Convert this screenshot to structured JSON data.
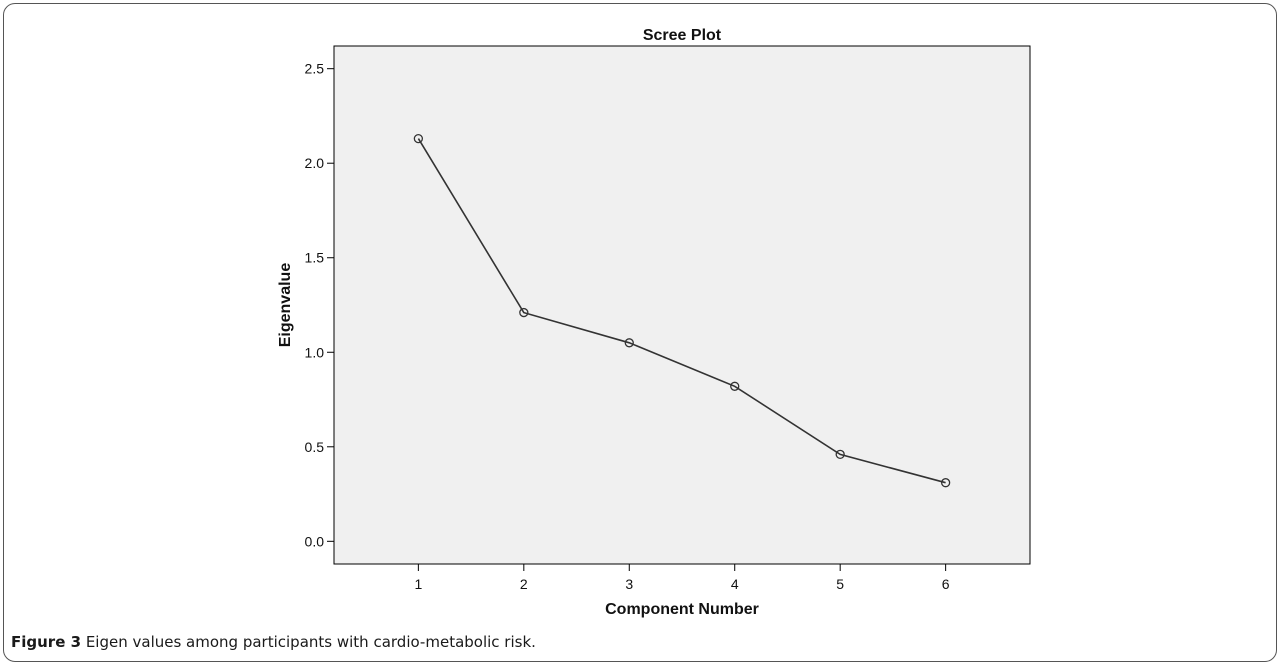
{
  "chart_data": {
    "type": "line",
    "title": "Scree Plot",
    "xlabel": "Component Number",
    "ylabel": "Eigenvalue",
    "x": [
      1,
      2,
      3,
      4,
      5,
      6
    ],
    "values": [
      2.13,
      1.21,
      1.05,
      0.82,
      0.46,
      0.31
    ],
    "xlim": [
      0.2,
      6.8
    ],
    "ylim": [
      -0.12,
      2.62
    ],
    "yticks": [
      "0.0",
      "0.5",
      "1.0",
      "1.5",
      "2.0",
      "2.5"
    ],
    "xticks": [
      "1",
      "2",
      "3",
      "4",
      "5",
      "6"
    ],
    "grid": false,
    "plot_background": "#f0f0f0",
    "line_color": "#333333",
    "marker": "open-circle"
  },
  "caption": {
    "label": "Figure 3",
    "text": "Eigen values among participants with cardio-metabolic risk."
  }
}
